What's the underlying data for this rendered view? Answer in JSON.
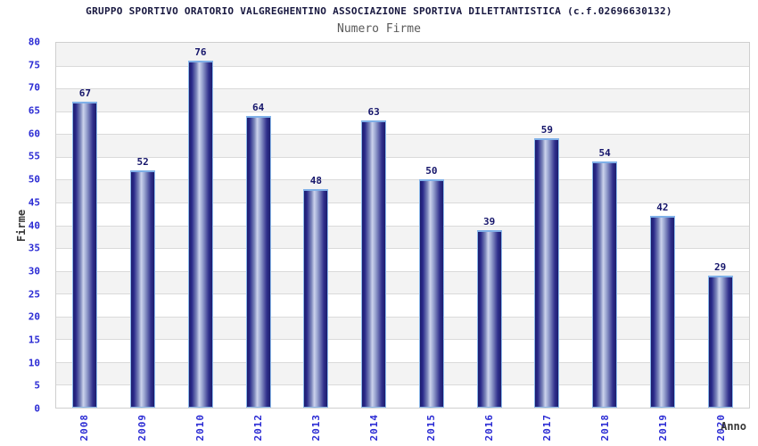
{
  "title": "GRUPPO SPORTIVO ORATORIO VALGREGHENTINO ASSOCIAZIONE SPORTIVA DILETTANTISTICA (c.f.02696630132)",
  "subtitle": "Numero Firme",
  "chart_data": {
    "type": "bar",
    "title": "GRUPPO SPORTIVO ORATORIO VALGREGHENTINO ASSOCIAZIONE SPORTIVA DILETTANTISTICA (c.f.02696630132)",
    "subtitle": "Numero Firme",
    "categories": [
      "2008",
      "2009",
      "2010",
      "2012",
      "2013",
      "2014",
      "2015",
      "2016",
      "2017",
      "2018",
      "2019",
      "2020"
    ],
    "values": [
      67,
      52,
      76,
      64,
      48,
      63,
      50,
      39,
      59,
      54,
      42,
      29
    ],
    "xlabel": "Anno",
    "ylabel": "Firme",
    "ylim": [
      0,
      80
    ],
    "ytick_step": 5,
    "grid": "horizontal-gridlines-with-alternating-gray-bands",
    "legend": "none",
    "colors": {
      "title_text": "#17173f",
      "subtitle_text": "#5a5a5a",
      "tick_label_blue": "#2b2bd4",
      "value_label_navy": "#16166b",
      "axis_title_gray": "#383838",
      "bar_dark": "#1c1c6e",
      "bar_mid": "#7d88bb",
      "bar_highlight": "#ccd3ec",
      "bar_border": "#8cb9ea",
      "bar_top_cap": "#7fb0e8",
      "band_gray": "#f3f3f3",
      "grid_line": "#dadada",
      "plot_border": "#cfcfcf"
    }
  }
}
